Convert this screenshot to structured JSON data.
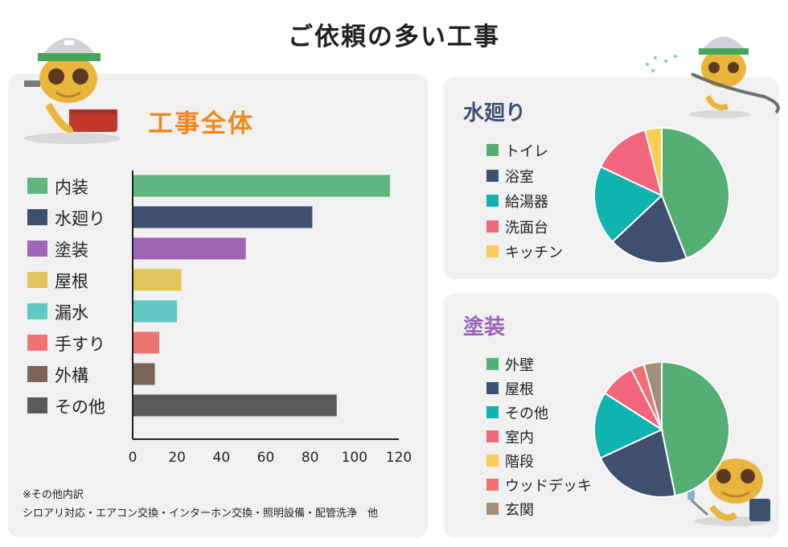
{
  "title": "ご依頼の多い工事",
  "main_panel": {
    "title": "工事全体",
    "note_title": "※その他内訳",
    "note_text": "シロアリ対応・エアコン交換・インターホン交換・照明設備・配管洗浄　他"
  },
  "water_panel": {
    "title": "水廻り"
  },
  "paint_panel": {
    "title": "塗装"
  },
  "colors": {
    "green": "#5db77f",
    "navy": "#3f4f6e",
    "purple": "#a064b4",
    "yellow": "#e2c65c",
    "teal": "#62c8c2",
    "salmon": "#ee7474",
    "brown": "#7a6558",
    "gray": "#5a5a5a",
    "cyan": "#0fb3b0",
    "pink": "#f2667e",
    "gold": "#fbcd52",
    "tan": "#a09078"
  },
  "chart_data": [
    {
      "type": "bar",
      "orientation": "horizontal",
      "title": "工事全体",
      "categories": [
        "内装",
        "水廻り",
        "塗装",
        "屋根",
        "漏水",
        "手すり",
        "外構",
        "その他"
      ],
      "values": [
        116,
        81,
        51,
        22,
        20,
        12,
        10,
        92
      ],
      "bar_colors": [
        "#5db77f",
        "#3f4f6e",
        "#a064b4",
        "#e2c65c",
        "#62c8c2",
        "#ee7474",
        "#7a6558",
        "#5a5a5a"
      ],
      "xlim": [
        0,
        120
      ],
      "xticks": [
        0,
        20,
        40,
        60,
        80,
        100,
        120
      ],
      "grid": false
    },
    {
      "type": "pie",
      "title": "水廻り",
      "labels": [
        "トイレ",
        "浴室",
        "給湯器",
        "洗面台",
        "キッチン"
      ],
      "values": [
        44,
        19,
        19,
        14,
        4
      ],
      "colors": [
        "#55ae74",
        "#3f4f6e",
        "#0fb3b0",
        "#f2667e",
        "#fbcd52"
      ],
      "legend": "left"
    },
    {
      "type": "pie",
      "title": "塗装",
      "labels": [
        "外壁",
        "屋根",
        "その他",
        "室内",
        "階段",
        "ウッドデッキ",
        "玄関"
      ],
      "values": [
        44,
        20,
        15,
        8,
        0,
        3,
        4
      ],
      "colors": [
        "#55ae74",
        "#3f4f6e",
        "#0fb3b0",
        "#f2667e",
        "#fbcd52",
        "#ee7474",
        "#a09078"
      ],
      "legend": "left"
    }
  ]
}
